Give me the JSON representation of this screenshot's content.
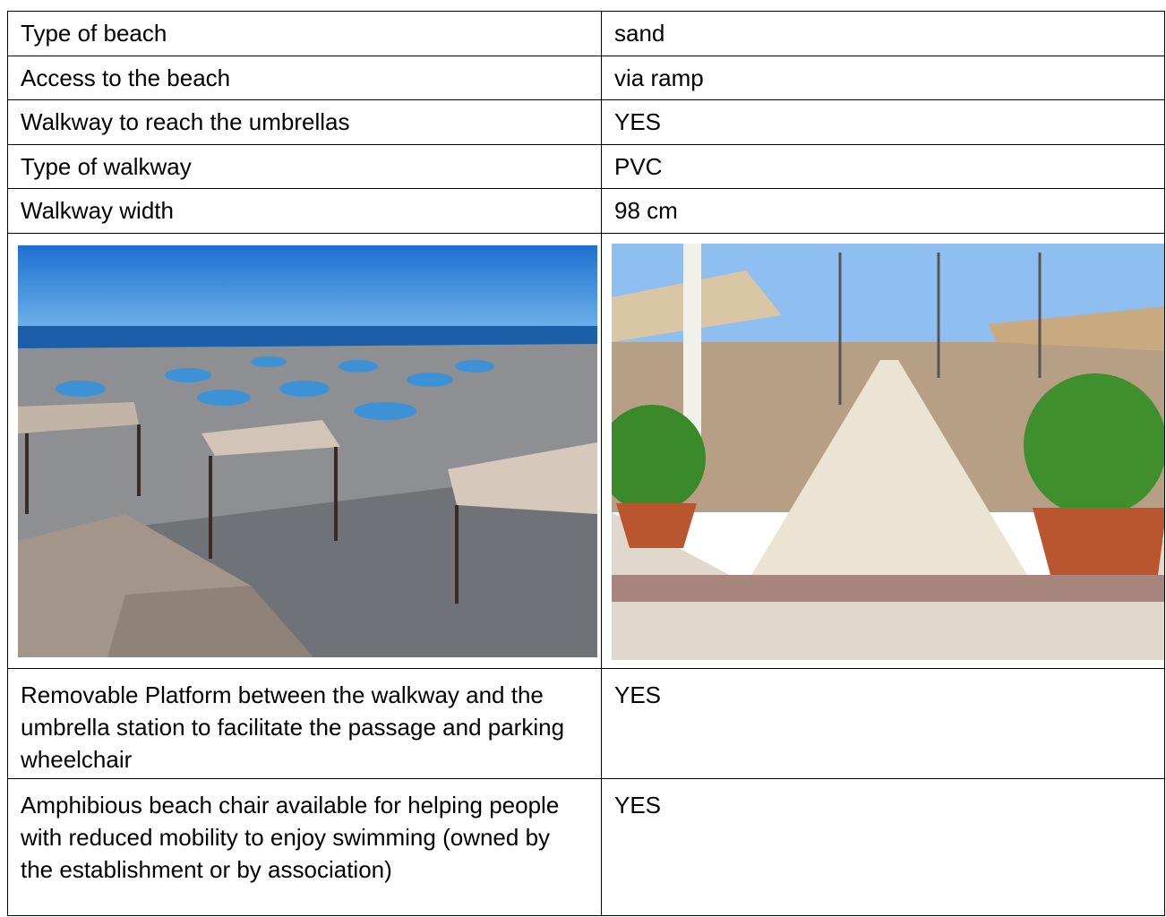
{
  "table": {
    "rows": [
      [
        "Type of beach",
        "sand"
      ],
      [
        "Access to the beach",
        "via ramp"
      ],
      [
        "Walkway to reach the umbrellas",
        "YES"
      ],
      [
        "Type of walkway",
        "PVC"
      ],
      [
        "Walkway width",
        "98 cm"
      ],
      [
        "Removable Platform between the walkway and the umbrella station to facilitate the passage and parking wheelchair",
        "YES"
      ],
      [
        "Amphibious beach chair available for helping people with reduced mobility to enjoy swimming (owned by the establishment or by association)",
        "YES"
      ]
    ]
  }
}
